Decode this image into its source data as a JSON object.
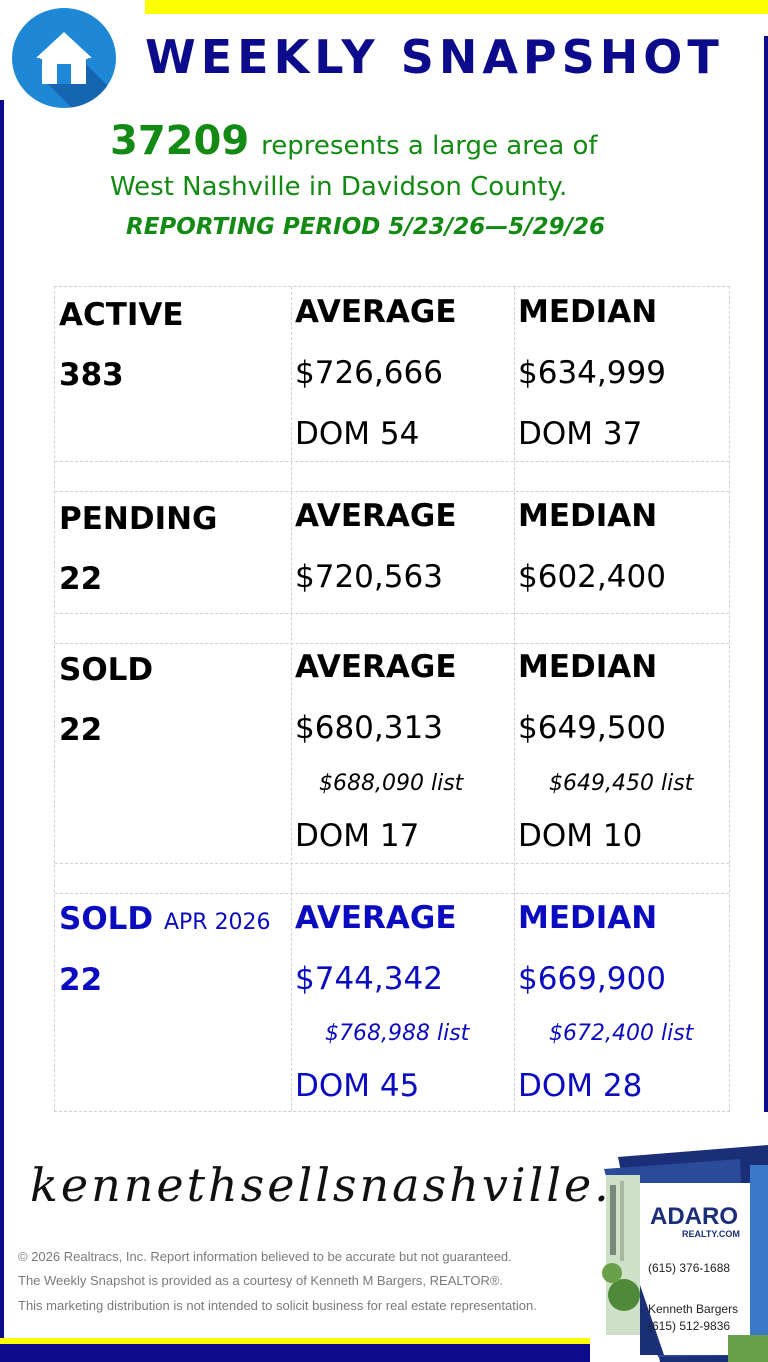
{
  "header": {
    "title": "WEEKLY SNAPSHOT",
    "logo_icon": "house-icon",
    "colors": {
      "navy": "#0b0b8c",
      "yellow": "#ffff00",
      "green": "#138a13",
      "accent_blue": "#0b0bbf",
      "logo_blue": "#1e88d6"
    }
  },
  "intro": {
    "zip": "37209",
    "line1": "represents a large area of",
    "line2": "West Nashville in Davidson County.",
    "period": "REPORTING PERIOD 5/23/26—5/29/26"
  },
  "sections": {
    "active": {
      "label": "ACTIVE",
      "count": "383",
      "avg_label": "AVERAGE",
      "avg_price": "$726,666",
      "avg_dom": "DOM 54",
      "med_label": "MEDIAN",
      "med_price": "$634,999",
      "med_dom": "DOM 37"
    },
    "pending": {
      "label": "PENDING",
      "count": "22",
      "avg_label": "AVERAGE",
      "avg_price": "$720,563",
      "med_label": "MEDIAN",
      "med_price": "$602,400"
    },
    "sold": {
      "label": "SOLD",
      "count": "22",
      "avg_label": "AVERAGE",
      "avg_price": "$680,313",
      "avg_list": "$688,090 list",
      "avg_dom": "DOM 17",
      "med_label": "MEDIAN",
      "med_price": "$649,500",
      "med_list": "$649,450 list",
      "med_dom": "DOM 10"
    },
    "sold_month": {
      "label": "SOLD",
      "month": "APR 2026",
      "count": "22",
      "avg_label": "AVERAGE",
      "avg_price": "$744,342",
      "avg_list": "$768,988 list",
      "avg_dom": "DOM 45",
      "med_label": "MEDIAN",
      "med_price": "$669,900",
      "med_list": "$672,400 list",
      "med_dom": "DOM 28"
    }
  },
  "footer": {
    "website": "kennethsellsnashville.com",
    "copyright": "© 2026 Realtracs, Inc. Report information believed to be accurate but not guaranteed.",
    "courtesy": "The Weekly Snapshot is provided as a courtesy of Kenneth M Bargers, REALTOR®.",
    "disclaimer": "This marketing distribution is not intended to solicit business for real estate representation."
  },
  "card": {
    "brand": "ADARO",
    "brand_sub": "REALTY.COM",
    "office_phone": "(615) 376-1688",
    "agent_name": "Kenneth Bargers",
    "agent_phone": "(615) 512-9836"
  }
}
